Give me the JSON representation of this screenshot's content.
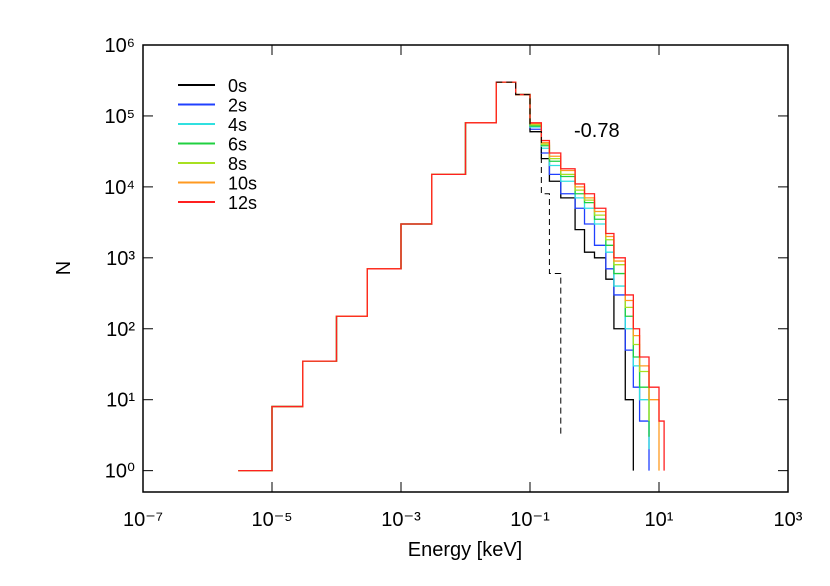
{
  "chart_data": {
    "type": "line",
    "log_x": true,
    "log_y": true,
    "xlabel": "Energy [keV]",
    "ylabel": "N",
    "annotation": "-0.78",
    "xlim": [
      1e-07,
      1000
    ],
    "ylim": [
      0.5,
      1000000
    ],
    "xticks": [
      {
        "value": 1e-07,
        "label": "10⁻⁷"
      },
      {
        "value": 1e-05,
        "label": "10⁻⁵"
      },
      {
        "value": 0.001,
        "label": "10⁻³"
      },
      {
        "value": 0.1,
        "label": "10⁻¹"
      },
      {
        "value": 10,
        "label": "10¹"
      },
      {
        "value": 1000,
        "label": "10³"
      }
    ],
    "yticks": [
      {
        "value": 1,
        "label": "10⁰"
      },
      {
        "value": 10,
        "label": "10¹"
      },
      {
        "value": 100,
        "label": "10²"
      },
      {
        "value": 1000,
        "label": "10³"
      },
      {
        "value": 10000,
        "label": "10⁴"
      },
      {
        "value": 100000,
        "label": "10⁵"
      },
      {
        "value": 1000000,
        "label": "10⁶"
      }
    ],
    "legend": "upper left",
    "x": [
      3e-06,
      1e-05,
      3e-05,
      0.0001,
      0.0003,
      0.001,
      0.003,
      0.01,
      0.03,
      0.06,
      0.1,
      0.15,
      0.2,
      0.3,
      0.5,
      0.7,
      1,
      1.5,
      2,
      3,
      4,
      5,
      7,
      10,
      12,
      15
    ],
    "series": [
      {
        "name": "0s",
        "color": "#000000",
        "values": [
          1,
          8,
          35,
          150,
          700,
          3000,
          15000,
          80000,
          300000,
          200000,
          60000,
          25000,
          12000,
          7000,
          2500,
          1200,
          1000,
          500,
          100,
          10,
          1,
          null,
          null,
          null,
          null,
          null
        ]
      },
      {
        "name": "2s",
        "color": "#2040ff",
        "values": [
          1,
          8,
          35,
          150,
          700,
          3000,
          15000,
          80000,
          300000,
          200000,
          65000,
          30000,
          15000,
          8000,
          5000,
          3000,
          1500,
          700,
          300,
          50,
          15,
          5,
          1,
          null,
          null,
          null
        ]
      },
      {
        "name": "4s",
        "color": "#30e0e0",
        "values": [
          1,
          8,
          35,
          150,
          700,
          3000,
          15000,
          80000,
          300000,
          200000,
          70000,
          35000,
          20000,
          12000,
          7000,
          5000,
          3000,
          1200,
          400,
          100,
          30,
          10,
          2,
          null,
          null,
          null
        ]
      },
      {
        "name": "6s",
        "color": "#20d040",
        "values": [
          1,
          8,
          35,
          150,
          700,
          3000,
          15000,
          80000,
          300000,
          200000,
          72000,
          38000,
          23000,
          14000,
          8000,
          6000,
          3500,
          1500,
          600,
          150,
          40,
          15,
          3,
          null,
          null,
          null
        ]
      },
      {
        "name": "8s",
        "color": "#a8e020",
        "values": [
          1,
          8,
          35,
          150,
          700,
          3000,
          15000,
          80000,
          300000,
          200000,
          75000,
          40000,
          25000,
          15000,
          9000,
          6500,
          4000,
          1800,
          800,
          200,
          60,
          25,
          5,
          null,
          null,
          null
        ]
      },
      {
        "name": "10s",
        "color": "#ff9a20",
        "values": [
          1,
          8,
          35,
          150,
          700,
          3000,
          15000,
          80000,
          300000,
          200000,
          78000,
          42000,
          27000,
          17000,
          10000,
          7000,
          4500,
          2000,
          900,
          250,
          80,
          30,
          10,
          1,
          null,
          null
        ]
      },
      {
        "name": "12s",
        "color": "#ff2020",
        "values": [
          1,
          8,
          35,
          150,
          700,
          3000,
          15000,
          80000,
          300000,
          200000,
          80000,
          45000,
          30000,
          18000,
          11000,
          8000,
          5000,
          2200,
          1000,
          300,
          100,
          40,
          15,
          5,
          1,
          null
        ]
      },
      {
        "color": "#000000",
        "dashed": true,
        "values": [
          null,
          null,
          null,
          null,
          null,
          null,
          null,
          null,
          300000,
          200000,
          60000,
          8000,
          600,
          3,
          null,
          null,
          null,
          null,
          null,
          null,
          null,
          null,
          null,
          null,
          null,
          null
        ]
      }
    ]
  }
}
